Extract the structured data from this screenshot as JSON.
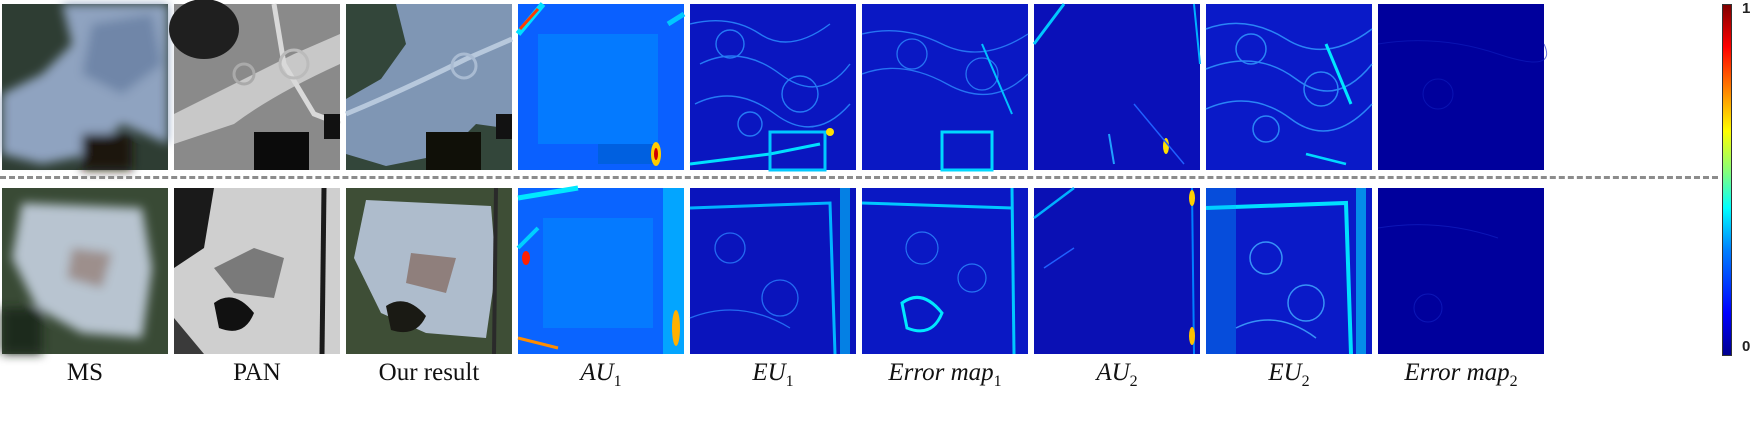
{
  "columns": [
    {
      "key": "ms",
      "label": "MS"
    },
    {
      "key": "pan",
      "label": "PAN"
    },
    {
      "key": "ours",
      "label": "Our result"
    },
    {
      "key": "au1",
      "label": "AU",
      "sub": "1"
    },
    {
      "key": "eu1",
      "label": "EU",
      "sub": "1"
    },
    {
      "key": "err1",
      "label": "Error map",
      "sub": "1"
    },
    {
      "key": "au2",
      "label": "AU",
      "sub": "2"
    },
    {
      "key": "eu2",
      "label": "EU",
      "sub": "2"
    },
    {
      "key": "err2",
      "label": "Error map",
      "sub": "2"
    }
  ],
  "colorbar": {
    "max_label": "1",
    "min_label": "0"
  },
  "colors": {
    "map_background": "#0a18c8",
    "map_dark": "#00009a",
    "map_accent": "#00d8ff",
    "divider": "#8c8c8c"
  }
}
